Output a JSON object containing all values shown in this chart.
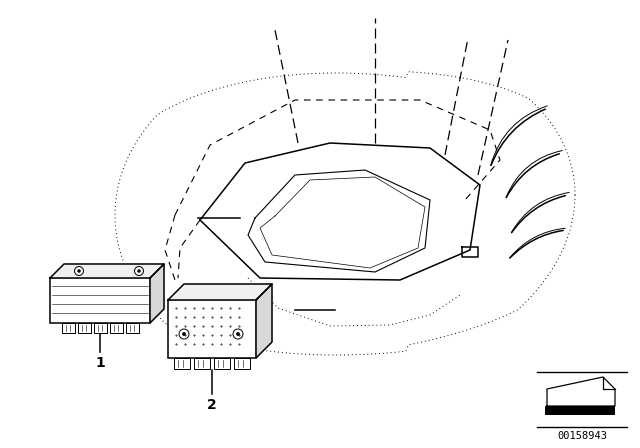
{
  "bg_color": "#ffffff",
  "fig_width": 6.4,
  "fig_height": 4.48,
  "dpi": 100,
  "part_number": "00158943",
  "label1": "1",
  "label2": "2",
  "lc": "#000000"
}
